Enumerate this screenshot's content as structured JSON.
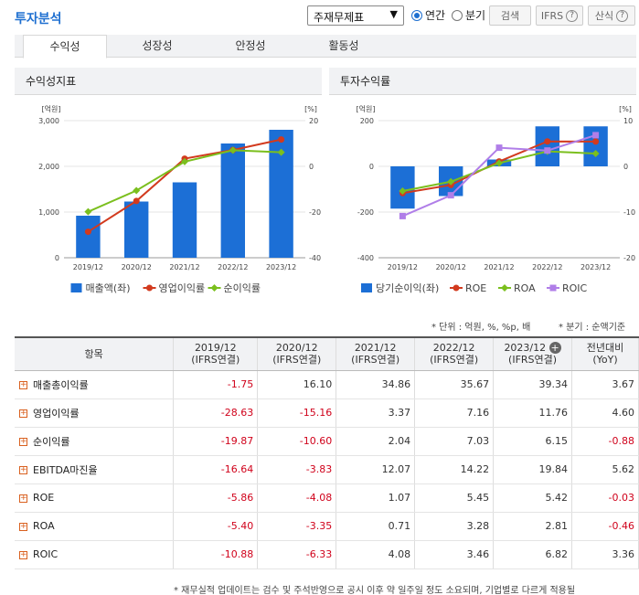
{
  "header": {
    "title": "투자분석",
    "select_value": "주재무제표",
    "radio_annual": "연간",
    "radio_quarter": "분기",
    "search_label": "검색",
    "ifrs_label": "IFRS",
    "calc_label": "산식"
  },
  "tabs": [
    "수익성",
    "성장성",
    "안정성",
    "활동성"
  ],
  "colors": {
    "bar": "#1c6fd6",
    "red": "#d23a1e",
    "green": "#7bbf1e",
    "purple": "#b07ee8",
    "accent": "#1e6fd0"
  },
  "panels": {
    "left_title": "수익성지표",
    "right_title": "투자수익률"
  },
  "chart_data": [
    {
      "type": "bar",
      "categories": [
        "2019/12",
        "2020/12",
        "2021/12",
        "2022/12",
        "2023/12"
      ],
      "left_unit": "[억원]",
      "right_unit": "[%]",
      "left_ticks": [
        "3,000",
        "2,000",
        "1,000",
        "0"
      ],
      "right_ticks": [
        "20",
        "0",
        "-20",
        "-40"
      ],
      "ylim_left": [
        0,
        3000
      ],
      "ylim_right": [
        -40,
        20
      ],
      "series": [
        {
          "name": "매출액(좌)",
          "kind": "bar",
          "axis": "left",
          "values": [
            920,
            1230,
            1650,
            2500,
            2800
          ]
        },
        {
          "name": "영업이익률",
          "kind": "line",
          "axis": "right",
          "values": [
            -28.63,
            -15.16,
            3.37,
            7.16,
            11.76
          ]
        },
        {
          "name": "순이익률",
          "kind": "line",
          "axis": "right",
          "values": [
            -19.87,
            -10.6,
            2.04,
            7.03,
            6.15
          ]
        }
      ]
    },
    {
      "type": "bar",
      "categories": [
        "2019/12",
        "2020/12",
        "2021/12",
        "2022/12",
        "2023/12"
      ],
      "left_unit": "[억원]",
      "right_unit": "[%]",
      "left_ticks": [
        "200",
        "0",
        "-200",
        "-400"
      ],
      "right_ticks": [
        "10",
        "0",
        "-10",
        "-20"
      ],
      "ylim_left": [
        -400,
        200
      ],
      "ylim_right": [
        -20,
        10
      ],
      "series": [
        {
          "name": "당기순이익(좌)",
          "kind": "bar",
          "axis": "left",
          "values": [
            -185,
            -130,
            30,
            175,
            175
          ]
        },
        {
          "name": "ROE",
          "kind": "line",
          "axis": "right",
          "values": [
            -5.86,
            -4.08,
            1.07,
            5.45,
            5.42
          ]
        },
        {
          "name": "ROA",
          "kind": "line",
          "axis": "right",
          "values": [
            -5.4,
            -3.35,
            0.71,
            3.28,
            2.81
          ]
        },
        {
          "name": "ROIC",
          "kind": "line",
          "axis": "right",
          "values": [
            -10.88,
            -6.33,
            4.08,
            3.46,
            6.82
          ]
        }
      ]
    }
  ],
  "notes": {
    "unit": "* 단위 : 억원, %, %p, 배",
    "quarter": "* 분기 : 순액기준"
  },
  "table": {
    "headers": [
      {
        "top": "항목",
        "bottom": ""
      },
      {
        "top": "2019/12",
        "bottom": "(IFRS연결)"
      },
      {
        "top": "2020/12",
        "bottom": "(IFRS연결)"
      },
      {
        "top": "2021/12",
        "bottom": "(IFRS연결)"
      },
      {
        "top": "2022/12",
        "bottom": "(IFRS연결)"
      },
      {
        "top": "2023/12",
        "bottom": "(IFRS연결)"
      },
      {
        "top": "전년대비",
        "bottom": "(YoY)"
      }
    ],
    "rows": [
      {
        "label": "매출총이익률",
        "values": [
          "-1.75",
          "16.10",
          "34.86",
          "35.67",
          "39.34",
          "3.67"
        ]
      },
      {
        "label": "영업이익률",
        "values": [
          "-28.63",
          "-15.16",
          "3.37",
          "7.16",
          "11.76",
          "4.60"
        ]
      },
      {
        "label": "순이익률",
        "values": [
          "-19.87",
          "-10.60",
          "2.04",
          "7.03",
          "6.15",
          "-0.88"
        ]
      },
      {
        "label": "EBITDA마진율",
        "values": [
          "-16.64",
          "-3.83",
          "12.07",
          "14.22",
          "19.84",
          "5.62"
        ]
      },
      {
        "label": "ROE",
        "values": [
          "-5.86",
          "-4.08",
          "1.07",
          "5.45",
          "5.42",
          "-0.03"
        ]
      },
      {
        "label": "ROA",
        "values": [
          "-5.40",
          "-3.35",
          "0.71",
          "3.28",
          "2.81",
          "-0.46"
        ]
      },
      {
        "label": "ROIC",
        "values": [
          "-10.88",
          "-6.33",
          "4.08",
          "3.46",
          "6.82",
          "3.36"
        ]
      }
    ]
  },
  "footnote": "* 재무실적 업데이트는 검수 및 주석반영으로 공시 이후 약 일주일 정도 소요되며, 기업별로 다르게 적용될"
}
